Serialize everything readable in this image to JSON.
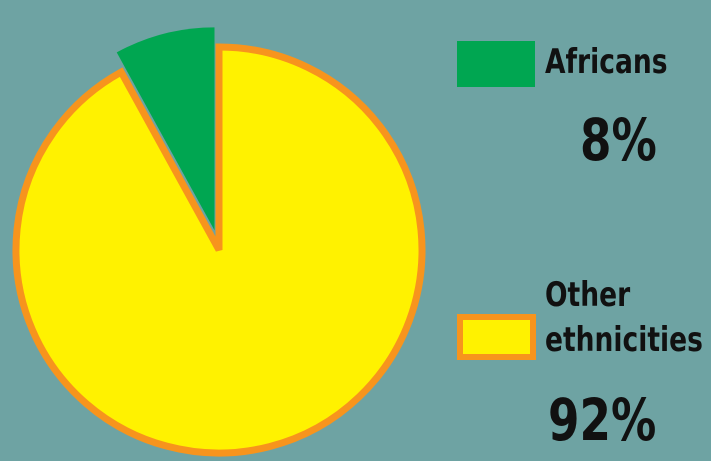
{
  "chart_data": {
    "type": "pie",
    "slices": [
      {
        "label_lines": [
          "Africans"
        ],
        "value": 8,
        "value_label": "8%",
        "color": "#00a651",
        "edge_color": "#f7941d",
        "exploded": true
      },
      {
        "label_lines": [
          "Other",
          "ethnicities"
        ],
        "value": 92,
        "value_label": "92%",
        "color": "#fff200",
        "edge_color": "#f7941d",
        "exploded": false
      }
    ],
    "legend_position": "right",
    "background_color": "#6ea3a3",
    "text_color": "#111111"
  }
}
